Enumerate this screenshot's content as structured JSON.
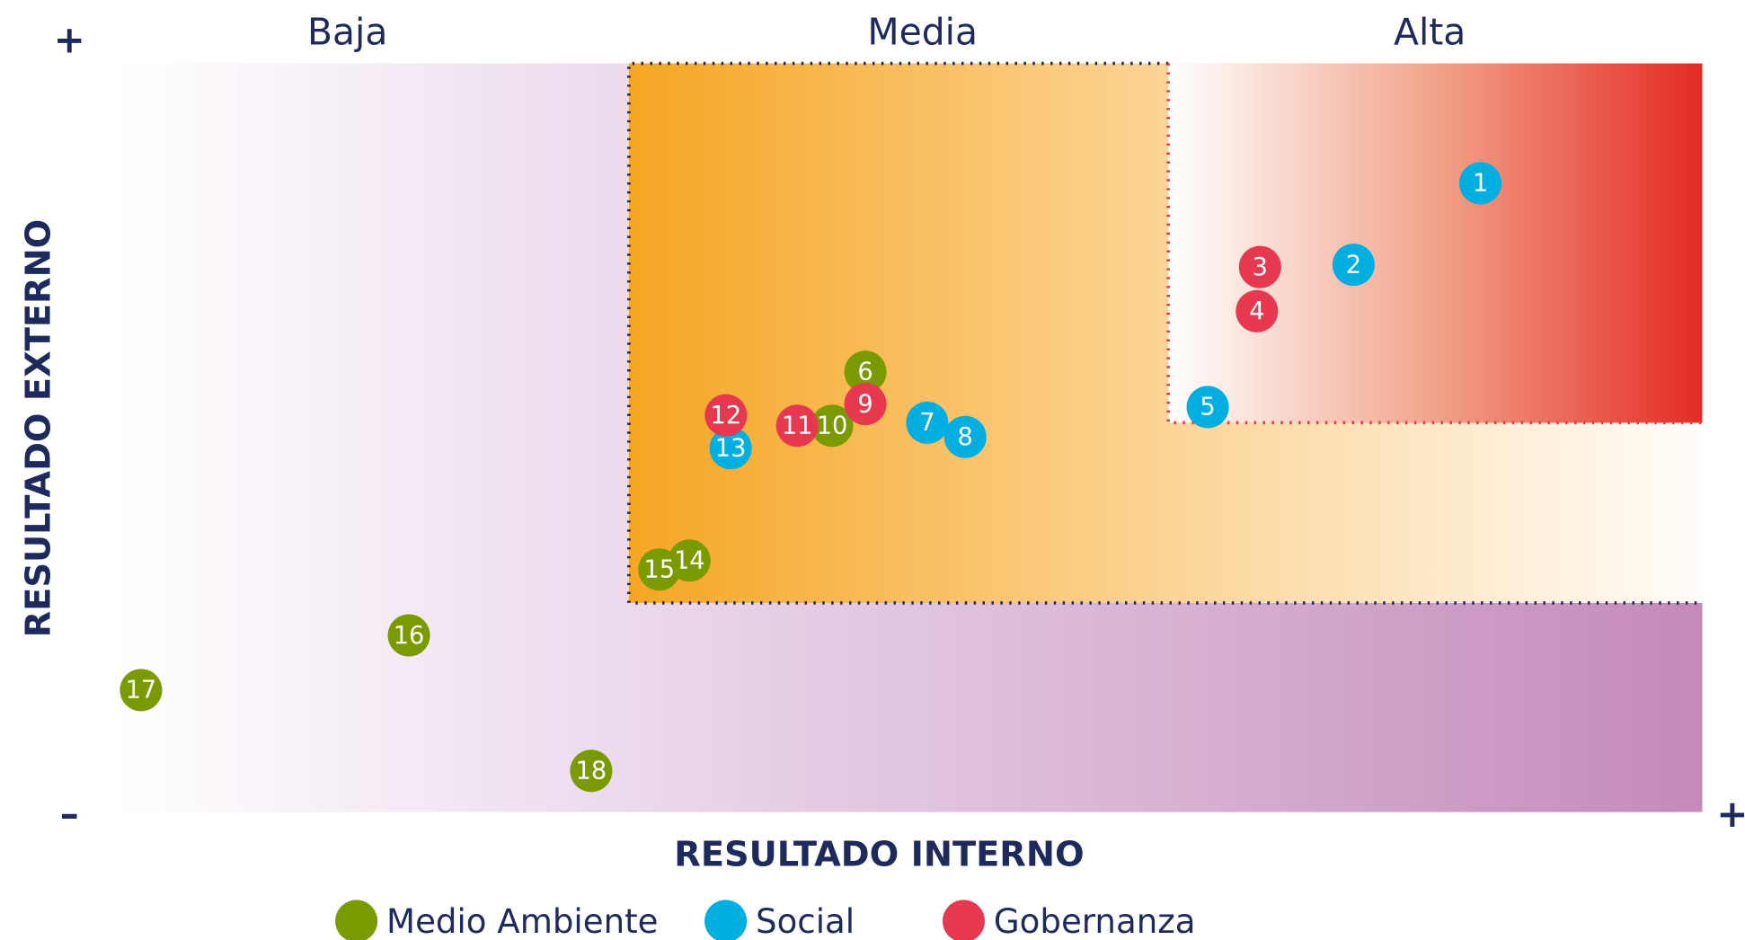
{
  "chart_data": {
    "type": "scatter",
    "zones": [
      "Baja",
      "Media",
      "Alta"
    ],
    "xlabel": "RESULTADO INTERNO",
    "ylabel": "RESULTADO EXTERNO",
    "axis_ends": {
      "y_max": "+",
      "y_min": "–",
      "x_max": "+"
    },
    "xlim": [
      0,
      100
    ],
    "ylim": [
      0,
      100
    ],
    "series": [
      {
        "name": "Medio Ambiente",
        "color": "#7a9a01",
        "labels": [
          6,
          10,
          14,
          15,
          16,
          17,
          18
        ],
        "x": [
          47.2,
          45.1,
          36.1,
          34.2,
          18.4,
          1.5,
          29.9
        ],
        "y": [
          58.8,
          51.6,
          33.6,
          32.4,
          23.6,
          16.3,
          5.5
        ]
      },
      {
        "name": "Social",
        "color": "#00aee0",
        "labels": [
          1,
          2,
          5,
          7,
          8,
          13
        ],
        "x": [
          86.0,
          78.0,
          68.8,
          51.1,
          53.5,
          38.7
        ],
        "y": [
          84.0,
          73.1,
          54.1,
          52.0,
          50.1,
          48.6
        ]
      },
      {
        "name": "Gobernanza",
        "color": "#e63950",
        "labels": [
          3,
          4,
          9,
          11,
          12
        ],
        "x": [
          72.1,
          71.9,
          47.2,
          42.9,
          38.4
        ],
        "y": [
          72.8,
          66.9,
          54.5,
          51.6,
          53.0
        ]
      }
    ]
  }
}
